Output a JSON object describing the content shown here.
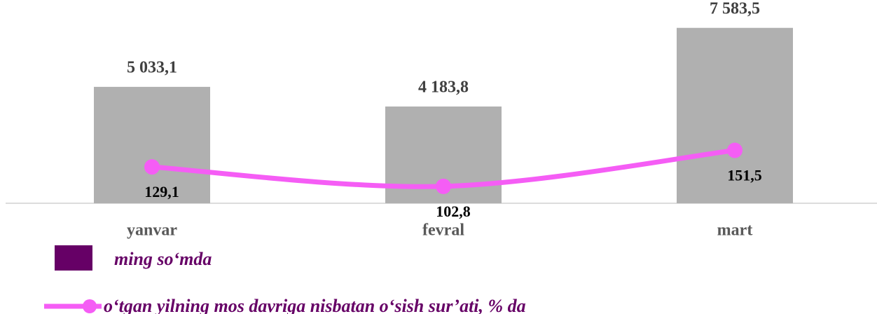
{
  "chart_data": {
    "type": "bar",
    "categories": [
      "yanvar",
      "fevral",
      "mart"
    ],
    "series": [
      {
        "name": "ming so‘mda",
        "type": "bar",
        "color": "#b0b0b0",
        "legend_color": "#660066",
        "values": [
          5033.1,
          4183.8,
          7583.5
        ],
        "value_labels": [
          "5 033,1",
          "4 183,8",
          "7 583,5"
        ]
      },
      {
        "name": "o‘tgan yilning mos davriga nisbatan o‘sish sur’ati, % da",
        "type": "line",
        "axis": "y2",
        "color": "#f55df5",
        "values": [
          129.1,
          102.8,
          151.5
        ],
        "value_labels": [
          "129,1",
          "102,8",
          "151,5"
        ]
      }
    ],
    "ylim": [
      0,
      8000
    ],
    "y2lim": [
      80,
      330
    ]
  }
}
